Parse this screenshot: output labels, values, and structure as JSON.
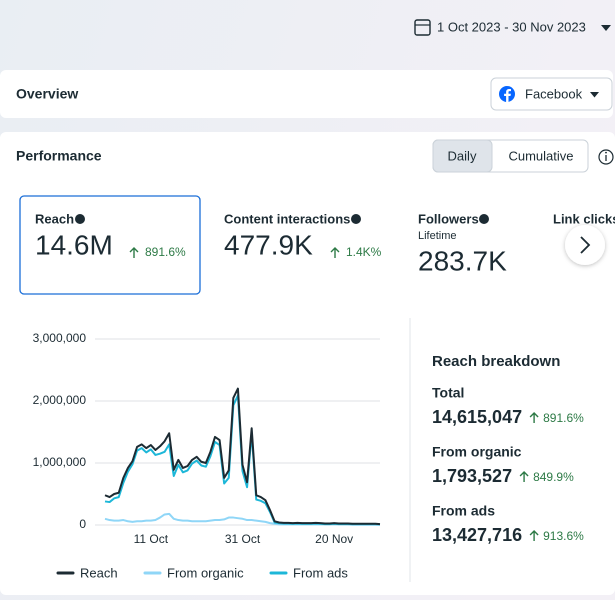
{
  "header": {
    "date_range": "1 Oct 2023 - 30 Nov 2023"
  },
  "overview": {
    "title": "Overview",
    "platform": "Facebook"
  },
  "performance": {
    "title": "Performance",
    "tabs": [
      "Daily",
      "Cumulative"
    ],
    "metrics": [
      {
        "label": "Reach",
        "value": "14.6M",
        "change": "891.6%"
      },
      {
        "label": "Content interactions",
        "value": "477.9K",
        "change": "1.4K%"
      },
      {
        "label": "Followers",
        "sublabel": "Lifetime",
        "value": "283.7K"
      },
      {
        "label": "Link clicks"
      }
    ]
  },
  "chart_data": {
    "type": "line",
    "categories": [
      null,
      null,
      null,
      null,
      null,
      null,
      null,
      null,
      null,
      null,
      "11 Oct",
      null,
      null,
      null,
      null,
      null,
      null,
      null,
      null,
      null,
      null,
      null,
      null,
      null,
      null,
      null,
      null,
      null,
      null,
      null,
      "31 Oct",
      null,
      null,
      null,
      null,
      null,
      null,
      null,
      null,
      null,
      null,
      null,
      null,
      null,
      null,
      null,
      null,
      null,
      null,
      null,
      "20 Nov",
      null,
      null,
      null,
      null,
      null,
      null,
      null,
      null,
      null,
      null
    ],
    "series": [
      {
        "name": "Reach",
        "color": "#1c2b33",
        "values": [
          480000,
          450000,
          500000,
          520000,
          760000,
          920000,
          1030000,
          1260000,
          1300000,
          1240000,
          1290000,
          1210000,
          1270000,
          1350000,
          1480000,
          890000,
          1050000,
          920000,
          950000,
          1050000,
          1100000,
          1020000,
          1000000,
          1180000,
          1420000,
          1370000,
          760000,
          880000,
          2050000,
          2200000,
          970000,
          690000,
          1560000,
          480000,
          450000,
          400000,
          240000,
          60000,
          40000,
          35000,
          35000,
          30000,
          35000,
          30000,
          30000,
          30000,
          35000,
          30000,
          25000,
          25000,
          30000,
          25000,
          25000,
          25000,
          20000,
          20000,
          20000,
          20000,
          20000,
          20000,
          15000
        ]
      },
      {
        "name": "From organic",
        "color": "#8fd6f7",
        "values": [
          100000,
          80000,
          70000,
          70000,
          80000,
          60000,
          50000,
          60000,
          60000,
          70000,
          70000,
          80000,
          120000,
          170000,
          180000,
          100000,
          80000,
          70000,
          70000,
          60000,
          60000,
          60000,
          60000,
          70000,
          80000,
          80000,
          90000,
          120000,
          120000,
          110000,
          100000,
          80000,
          80000,
          70000,
          60000,
          50000,
          30000,
          20000,
          10000,
          10000,
          10000,
          10000,
          10000,
          10000,
          10000,
          10000,
          10000,
          10000,
          10000,
          10000,
          10000,
          10000,
          10000,
          10000,
          5000,
          5000,
          5000,
          5000,
          5000,
          5000,
          5000
        ]
      },
      {
        "name": "From ads",
        "color": "#1db7d8",
        "values": [
          380000,
          370000,
          430000,
          450000,
          680000,
          860000,
          980000,
          1200000,
          1240000,
          1170000,
          1220000,
          1130000,
          1150000,
          1180000,
          1300000,
          790000,
          970000,
          850000,
          880000,
          990000,
          1040000,
          960000,
          940000,
          1110000,
          1340000,
          1290000,
          670000,
          760000,
          1930000,
          2090000,
          870000,
          610000,
          1480000,
          410000,
          390000,
          350000,
          210000,
          40000,
          30000,
          25000,
          25000,
          20000,
          25000,
          20000,
          20000,
          20000,
          25000,
          20000,
          15000,
          15000,
          20000,
          15000,
          15000,
          15000,
          15000,
          15000,
          15000,
          15000,
          15000,
          15000,
          10000
        ]
      }
    ],
    "ylim": [
      0,
      3000000
    ],
    "yticks": [
      0,
      {
        "value": 1000000,
        "label": "1,000,000"
      },
      {
        "value": 2000000,
        "label": "2,000,000"
      },
      {
        "value": 3000000,
        "label": "3,000,000"
      }
    ],
    "grid": true
  },
  "breakdown": {
    "title": "Reach breakdown",
    "rows": [
      {
        "label": "Total",
        "value": "14,615,047",
        "change": "891.6%"
      },
      {
        "label": "From organic",
        "value": "1,793,527",
        "change": "849.9%"
      },
      {
        "label": "From ads",
        "value": "13,427,716",
        "change": "913.6%"
      }
    ]
  }
}
